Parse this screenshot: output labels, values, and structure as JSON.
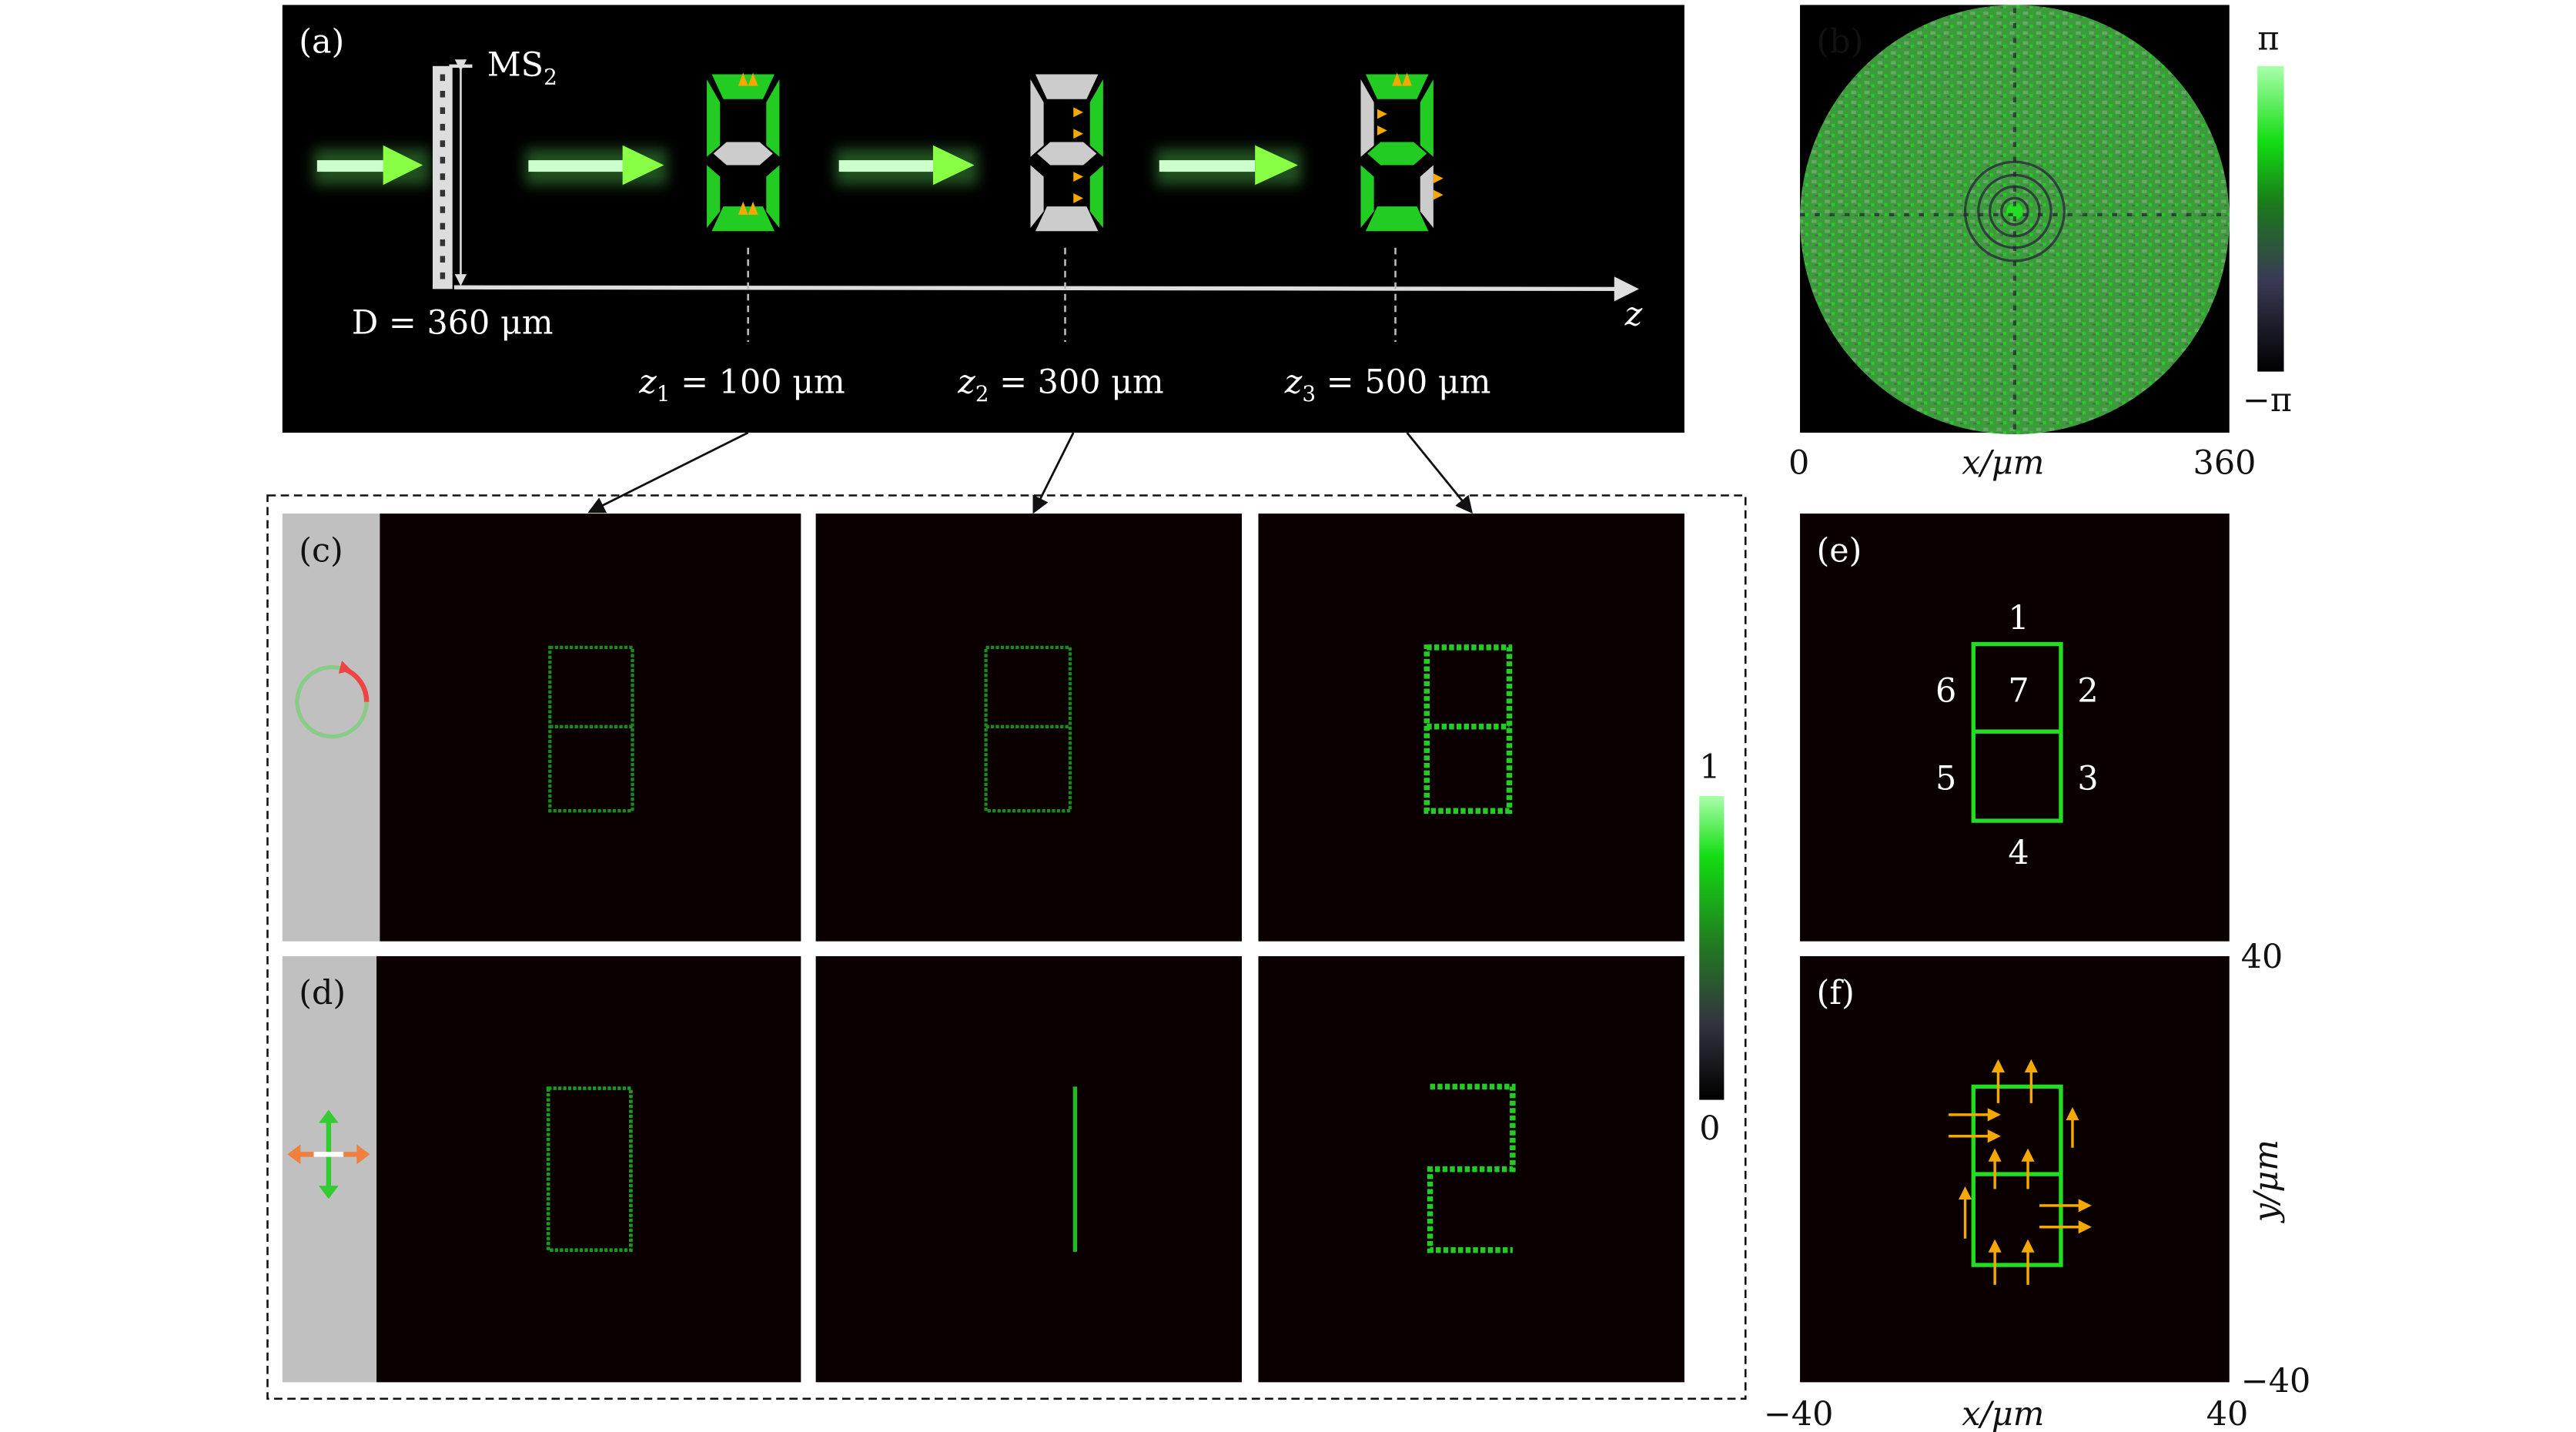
{
  "panel_a": {
    "label": "(a)",
    "metasurface_label": "MS",
    "metasurface_sub": "2",
    "diameter_label": "D = 360 μm",
    "axis_label": "z",
    "planes": [
      {
        "var": "z",
        "sub": "1",
        "text": " = 100 μm"
      },
      {
        "var": "z",
        "sub": "2",
        "text": " = 300 μm"
      },
      {
        "var": "z",
        "sub": "3",
        "text": " = 500 μm"
      }
    ]
  },
  "panel_b": {
    "label": "(b)",
    "colorbar_max": "π",
    "colorbar_min": "−π",
    "x_min": "0",
    "x_max": "360",
    "x_label": "x/μm"
  },
  "panel_c": {
    "label": "(c)",
    "polarization": "circular"
  },
  "panel_d": {
    "label": "(d)",
    "polarization": "linear-cross"
  },
  "intensity_colorbar": {
    "max": "1",
    "min": "0"
  },
  "panel_e": {
    "label": "(e)",
    "segments": [
      "1",
      "2",
      "3",
      "4",
      "5",
      "6",
      "7"
    ]
  },
  "panel_f": {
    "label": "(f)",
    "y_max": "40",
    "y_min": "−40",
    "y_label": "y/μm",
    "x_min": "−40",
    "x_max": "40",
    "x_label": "x/μm"
  },
  "colors": {
    "green": "#22dd22",
    "arrow_orange": "#f5a800",
    "panel_bg": "#0a0000",
    "gray_strip": "#c0c0c0"
  }
}
